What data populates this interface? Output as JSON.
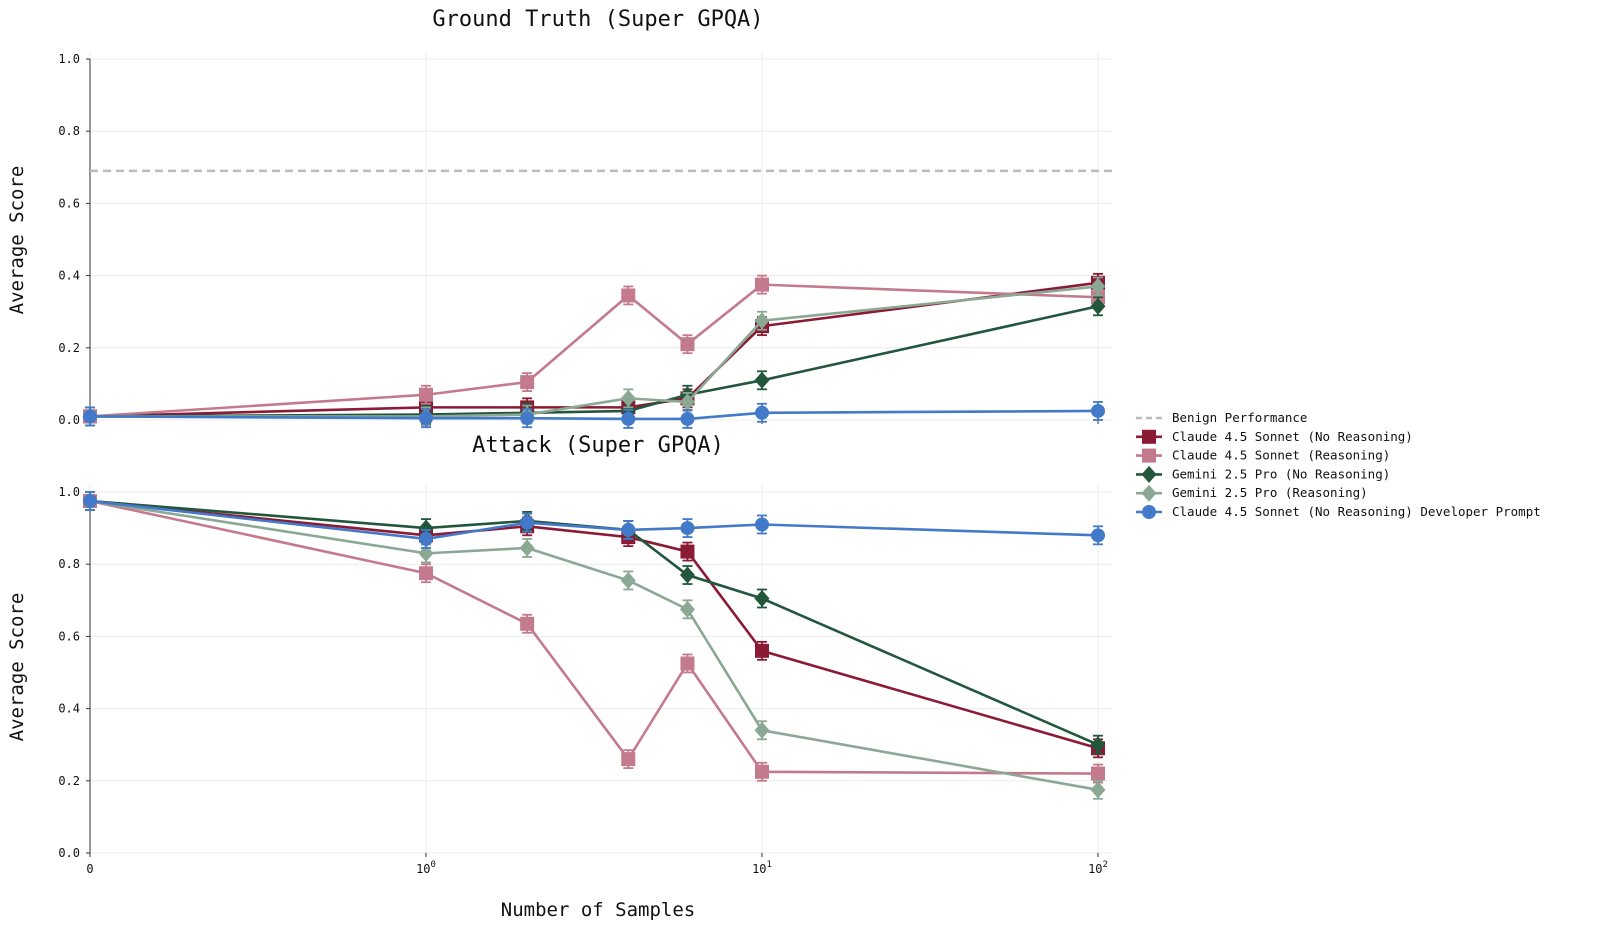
{
  "chart_data": [
    {
      "type": "line",
      "title": "Ground Truth (Super GPQA)",
      "xlabel": "",
      "ylabel": "Average Score",
      "xscale": "symlog",
      "ylim": [
        0,
        1.0
      ],
      "yticks": [
        "0.0",
        "0.2",
        "0.4",
        "0.6",
        "0.8",
        "1.0"
      ],
      "grid": true,
      "reference_line": {
        "name": "Benign Performance",
        "y": 0.69
      },
      "x": [
        0,
        1,
        2,
        4,
        6,
        10,
        100
      ],
      "series": [
        {
          "name": "Claude 4.5 Sonnet (No Reasoning)",
          "values": [
            0.01,
            0.035,
            0.035,
            0.035,
            0.06,
            0.26,
            0.38
          ]
        },
        {
          "name": "Claude 4.5 Sonnet (Reasoning)",
          "values": [
            0.01,
            0.07,
            0.105,
            0.345,
            0.21,
            0.375,
            0.34
          ]
        },
        {
          "name": "Gemini 2.5 Pro (No Reasoning)",
          "values": [
            0.01,
            0.015,
            0.02,
            0.025,
            0.07,
            0.11,
            0.315
          ]
        },
        {
          "name": "Gemini 2.5 Pro (Reasoning)",
          "values": [
            0.01,
            0.01,
            0.015,
            0.06,
            0.05,
            0.275,
            0.37
          ]
        },
        {
          "name": "Claude 4.5 Sonnet (No Reasoning) Developer Prompt",
          "values": [
            0.01,
            0.005,
            0.005,
            0.003,
            0.003,
            0.02,
            0.025
          ]
        }
      ]
    },
    {
      "type": "line",
      "title": "Attack (Super GPQA)",
      "xlabel": "Number of Samples",
      "ylabel": "Average Score",
      "xscale": "symlog",
      "ylim": [
        0,
        1.0
      ],
      "yticks": [
        "0.0",
        "0.2",
        "0.4",
        "0.6",
        "0.8",
        "1.0"
      ],
      "xticks": [
        {
          "label": "0",
          "value": 0
        },
        {
          "label": "10",
          "exp": "0",
          "value": 1
        },
        {
          "label": "10",
          "exp": "1",
          "value": 10
        },
        {
          "label": "10",
          "exp": "2",
          "value": 100
        }
      ],
      "grid": true,
      "x": [
        0,
        1,
        2,
        4,
        6,
        10,
        100
      ],
      "series": [
        {
          "name": "Claude 4.5 Sonnet (No Reasoning)",
          "values": [
            0.975,
            0.88,
            0.905,
            0.875,
            0.835,
            0.56,
            0.29
          ]
        },
        {
          "name": "Claude 4.5 Sonnet (Reasoning)",
          "values": [
            0.975,
            0.775,
            0.635,
            0.26,
            0.525,
            0.225,
            0.22
          ]
        },
        {
          "name": "Gemini 2.5 Pro (No Reasoning)",
          "values": [
            0.975,
            0.9,
            0.92,
            0.895,
            0.77,
            0.705,
            0.3
          ]
        },
        {
          "name": "Gemini 2.5 Pro (Reasoning)",
          "values": [
            0.975,
            0.83,
            0.845,
            0.755,
            0.675,
            0.34,
            0.175
          ]
        },
        {
          "name": "Claude 4.5 Sonnet (No Reasoning) Developer Prompt",
          "values": [
            0.975,
            0.87,
            0.915,
            0.895,
            0.9,
            0.91,
            0.88
          ]
        }
      ]
    }
  ],
  "legend": {
    "position": "right",
    "entries": [
      {
        "name": "Benign Performance",
        "color": "#bbbbbb",
        "style": "dashed",
        "marker": "none"
      },
      {
        "name": "Claude 4.5 Sonnet (No Reasoning)",
        "color": "#8b1a35",
        "marker": "square",
        "opacity": 1
      },
      {
        "name": "Claude 4.5 Sonnet (Reasoning)",
        "color": "#c47a8d",
        "marker": "square",
        "opacity": 1
      },
      {
        "name": "Gemini 2.5 Pro (No Reasoning)",
        "color": "#23573c",
        "marker": "diamond",
        "opacity": 1
      },
      {
        "name": "Gemini 2.5 Pro (Reasoning)",
        "color": "#8ba894",
        "marker": "diamond",
        "opacity": 1
      },
      {
        "name": "Claude 4.5 Sonnet (No Reasoning) Developer Prompt",
        "color": "#4279c9",
        "marker": "circle",
        "opacity": 1
      }
    ]
  }
}
